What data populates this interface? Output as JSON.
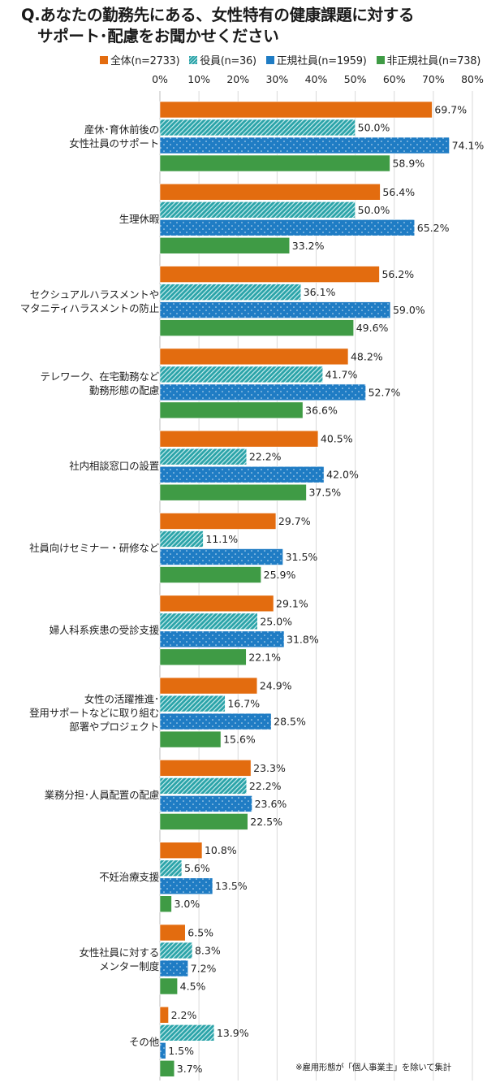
{
  "chart_data": {
    "type": "bar",
    "orientation": "horizontal",
    "title": "Q.あなたの勤務先にある、女性特有の健康課題に対する サポート･配慮をお聞かせください",
    "title_lines": [
      "Q.あなたの勤務先にある、女性特有の健康課題に対する",
      "サポート･配慮をお聞かせください"
    ],
    "xlabel": "",
    "ylabel": "",
    "xlim": [
      0,
      80
    ],
    "x_ticks": [
      "0%",
      "10%",
      "20%",
      "30%",
      "40%",
      "50%",
      "60%",
      "70%",
      "80%"
    ],
    "grid": true,
    "legend_position": "top-right",
    "categories": [
      "産休･育休前後の\n女性社員のサポート",
      "生理休暇",
      "セクシュアルハラスメントや\nマタニティハラスメントの防止",
      "テレワーク、在宅勤務など\n勤務形態の配慮",
      "社内相談窓口の設置",
      "社員向けセミナー・研修など",
      "婦人科系疾患の受診支援",
      "女性の活躍推進･\n登用サポートなどに取り組む\n部署やプロジェクト",
      "業務分担･人員配置の配慮",
      "不妊治療支援",
      "女性社員に対する\nメンター制度",
      "その他"
    ],
    "series": [
      {
        "name": "全体(n=2733)",
        "color": "#e36c0f",
        "pattern": "solid",
        "values": [
          69.7,
          56.4,
          56.2,
          48.2,
          40.5,
          29.7,
          29.1,
          24.9,
          23.3,
          10.8,
          6.5,
          2.2
        ]
      },
      {
        "name": "役員(n=36)",
        "color": "#2aa3a8",
        "pattern": "diagonal-stripes",
        "values": [
          50.0,
          50.0,
          36.1,
          41.7,
          22.2,
          11.1,
          25.0,
          16.7,
          22.2,
          5.6,
          8.3,
          13.9
        ]
      },
      {
        "name": "正規社員(n=1959)",
        "color": "#1f7cc4",
        "pattern": "dots",
        "values": [
          74.1,
          65.2,
          59.0,
          52.7,
          42.0,
          31.5,
          31.8,
          28.5,
          23.6,
          13.5,
          7.2,
          1.5
        ]
      },
      {
        "name": "非正規社員(n=738)",
        "color": "#3f9b45",
        "pattern": "solid",
        "values": [
          58.9,
          33.2,
          49.6,
          36.6,
          37.5,
          25.9,
          22.1,
          15.6,
          22.5,
          3.0,
          4.5,
          3.7
        ]
      }
    ],
    "value_suffix": "%",
    "annotations": [
      "※雇用形態が「個人事業主」を除いて集計"
    ]
  }
}
